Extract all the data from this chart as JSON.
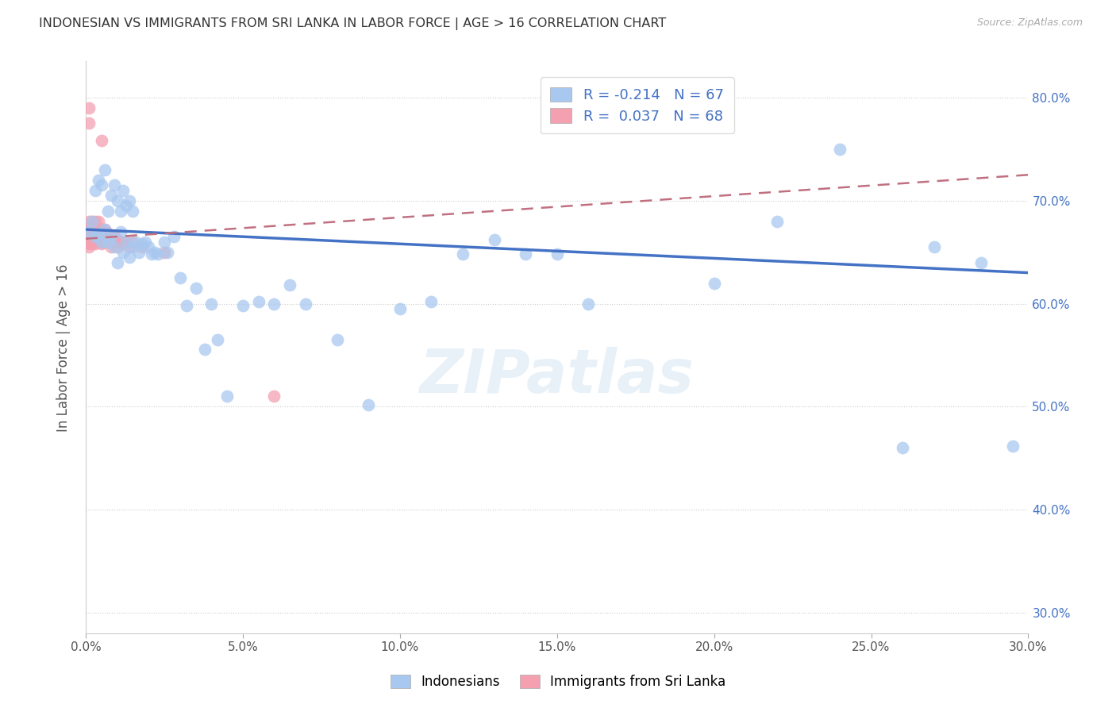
{
  "title": "INDONESIAN VS IMMIGRANTS FROM SRI LANKA IN LABOR FORCE | AGE > 16 CORRELATION CHART",
  "source": "Source: ZipAtlas.com",
  "ylabel": "In Labor Force | Age > 16",
  "x_min": 0.0,
  "x_max": 0.3,
  "y_min": 0.28,
  "y_max": 0.835,
  "x_ticks": [
    0.0,
    0.05,
    0.1,
    0.15,
    0.2,
    0.25,
    0.3
  ],
  "y_ticks": [
    0.3,
    0.4,
    0.5,
    0.6,
    0.7,
    0.8
  ],
  "y_tick_labels": [
    "30.0%",
    "40.0%",
    "50.0%",
    "60.0%",
    "70.0%",
    "80.0%"
  ],
  "x_tick_labels": [
    "0.0%",
    "5.0%",
    "10.0%",
    "15.0%",
    "20.0%",
    "25.0%",
    "30.0%"
  ],
  "indonesian_color": "#a8c8f0",
  "srilanka_color": "#f4a0b0",
  "indonesian_R": -0.214,
  "indonesian_N": 67,
  "srilanka_R": 0.037,
  "srilanka_N": 68,
  "legend_text_color": "#4472c4",
  "trend_blue": "#4472c4",
  "trend_pink": "#c07080",
  "watermark": "ZIPatlas",
  "indonesian_x": [
    0.001,
    0.002,
    0.003,
    0.003,
    0.004,
    0.004,
    0.005,
    0.005,
    0.006,
    0.006,
    0.007,
    0.007,
    0.008,
    0.008,
    0.009,
    0.009,
    0.01,
    0.01,
    0.011,
    0.011,
    0.012,
    0.012,
    0.013,
    0.013,
    0.014,
    0.014,
    0.015,
    0.015,
    0.016,
    0.017,
    0.018,
    0.019,
    0.02,
    0.021,
    0.022,
    0.023,
    0.025,
    0.026,
    0.028,
    0.03,
    0.032,
    0.035,
    0.038,
    0.04,
    0.042,
    0.045,
    0.05,
    0.055,
    0.06,
    0.065,
    0.07,
    0.08,
    0.09,
    0.1,
    0.11,
    0.12,
    0.13,
    0.14,
    0.15,
    0.16,
    0.2,
    0.22,
    0.24,
    0.26,
    0.27,
    0.285,
    0.295
  ],
  "indonesian_y": [
    0.67,
    0.68,
    0.71,
    0.665,
    0.72,
    0.668,
    0.715,
    0.66,
    0.73,
    0.672,
    0.69,
    0.66,
    0.705,
    0.665,
    0.715,
    0.655,
    0.7,
    0.64,
    0.69,
    0.67,
    0.71,
    0.65,
    0.695,
    0.66,
    0.7,
    0.645,
    0.69,
    0.655,
    0.66,
    0.65,
    0.658,
    0.66,
    0.655,
    0.648,
    0.65,
    0.648,
    0.66,
    0.65,
    0.665,
    0.625,
    0.598,
    0.615,
    0.556,
    0.6,
    0.565,
    0.51,
    0.598,
    0.602,
    0.6,
    0.618,
    0.6,
    0.565,
    0.502,
    0.595,
    0.602,
    0.648,
    0.662,
    0.648,
    0.648,
    0.6,
    0.62,
    0.68,
    0.75,
    0.46,
    0.655,
    0.64,
    0.462
  ],
  "srilanka_x": [
    0.001,
    0.001,
    0.001,
    0.001,
    0.001,
    0.001,
    0.001,
    0.001,
    0.001,
    0.001,
    0.001,
    0.001,
    0.002,
    0.002,
    0.002,
    0.002,
    0.002,
    0.002,
    0.002,
    0.002,
    0.002,
    0.002,
    0.002,
    0.003,
    0.003,
    0.003,
    0.003,
    0.003,
    0.003,
    0.003,
    0.003,
    0.003,
    0.003,
    0.004,
    0.004,
    0.004,
    0.004,
    0.004,
    0.004,
    0.004,
    0.005,
    0.005,
    0.005,
    0.005,
    0.005,
    0.005,
    0.005,
    0.005,
    0.006,
    0.006,
    0.006,
    0.006,
    0.007,
    0.007,
    0.008,
    0.008,
    0.009,
    0.009,
    0.01,
    0.01,
    0.011,
    0.012,
    0.013,
    0.014,
    0.015,
    0.018,
    0.025,
    0.06
  ],
  "srilanka_y": [
    0.67,
    0.665,
    0.672,
    0.68,
    0.66,
    0.658,
    0.675,
    0.655,
    0.663,
    0.668,
    0.79,
    0.775,
    0.672,
    0.668,
    0.665,
    0.68,
    0.67,
    0.662,
    0.658,
    0.672,
    0.66,
    0.665,
    0.67,
    0.668,
    0.672,
    0.665,
    0.68,
    0.67,
    0.662,
    0.658,
    0.665,
    0.67,
    0.668,
    0.672,
    0.68,
    0.665,
    0.67,
    0.662,
    0.665,
    0.668,
    0.66,
    0.758,
    0.672,
    0.665,
    0.658,
    0.67,
    0.668,
    0.665,
    0.668,
    0.672,
    0.66,
    0.665,
    0.668,
    0.662,
    0.66,
    0.655,
    0.665,
    0.66,
    0.662,
    0.655,
    0.66,
    0.658,
    0.66,
    0.655,
    0.66,
    0.655,
    0.65,
    0.51
  ]
}
